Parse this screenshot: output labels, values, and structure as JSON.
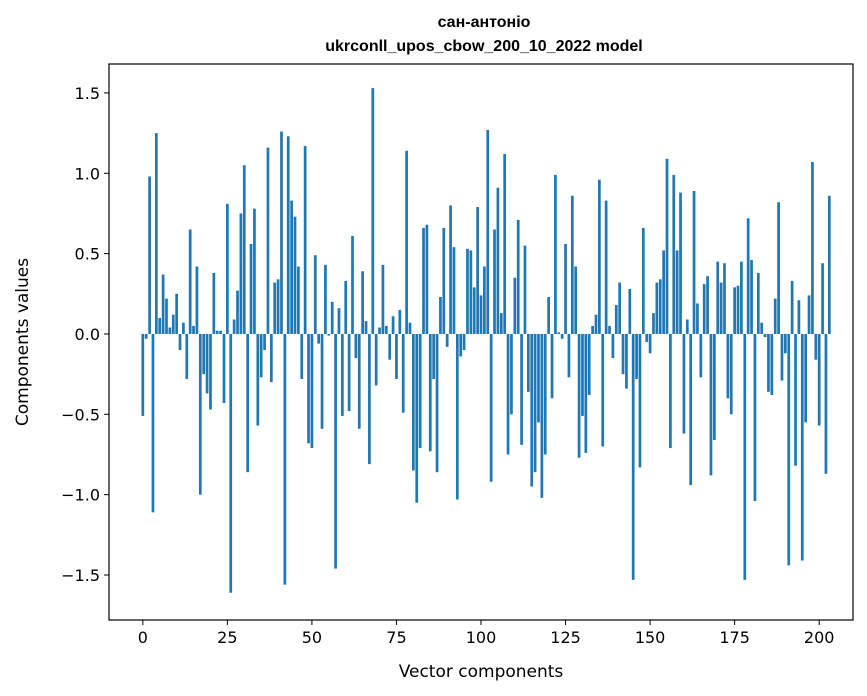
{
  "chart_data": {
    "type": "bar",
    "title": "сан-антоніо",
    "subtitle": "ukrconll_upos_cbow_200_10_2022 model",
    "xlabel": "Vector components",
    "ylabel": "Components values",
    "xlim": [
      -10,
      210
    ],
    "ylim": [
      -1.78,
      1.68
    ],
    "xticks": [
      0,
      25,
      50,
      75,
      100,
      125,
      150,
      175,
      200
    ],
    "yticks": [
      -1.5,
      -1.0,
      -0.5,
      0.0,
      0.5,
      1.0,
      1.5
    ],
    "ytick_labels": [
      "−1.5",
      "−1.0",
      "−0.5",
      "0.0",
      "0.5",
      "1.0",
      "1.5"
    ],
    "grid": false,
    "legend": "none",
    "bar_color": "#1f77b4",
    "values": [
      -0.51,
      -0.03,
      0.98,
      -1.11,
      1.25,
      0.1,
      0.37,
      0.22,
      0.04,
      0.12,
      0.25,
      -0.1,
      0.07,
      -0.28,
      0.65,
      0.05,
      0.42,
      -1.0,
      -0.25,
      -0.37,
      -0.47,
      0.38,
      0.02,
      0.02,
      -0.43,
      0.81,
      -1.61,
      0.09,
      0.27,
      0.75,
      1.05,
      -0.86,
      0.56,
      0.78,
      -0.57,
      -0.27,
      -0.1,
      1.16,
      -0.3,
      0.32,
      0.34,
      1.26,
      -1.56,
      1.23,
      0.83,
      0.73,
      0.42,
      -0.28,
      1.17,
      -0.68,
      -0.71,
      0.49,
      -0.06,
      -0.59,
      0.43,
      -0.01,
      0.2,
      -1.46,
      0.16,
      -0.51,
      0.33,
      -0.48,
      0.61,
      -0.15,
      -0.59,
      0.39,
      0.08,
      -0.81,
      1.53,
      -0.32,
      0.04,
      0.43,
      0.05,
      -0.16,
      0.11,
      -0.28,
      0.15,
      -0.49,
      1.14,
      0.07,
      -0.85,
      -1.05,
      -0.71,
      0.66,
      0.68,
      -0.73,
      -0.28,
      -0.86,
      0.23,
      0.66,
      -0.08,
      0.8,
      0.54,
      -1.03,
      -0.14,
      -0.1,
      0.53,
      0.52,
      0.29,
      0.79,
      0.24,
      0.42,
      1.27,
      -0.92,
      0.65,
      0.91,
      0.13,
      1.12,
      -0.75,
      -0.5,
      0.35,
      0.71,
      -0.69,
      0.55,
      -0.36,
      -0.95,
      -0.86,
      -0.55,
      -1.02,
      -0.75,
      0.23,
      -0.4,
      0.99,
      0.01,
      -0.03,
      0.56,
      -0.27,
      0.86,
      0.42,
      -0.77,
      -0.51,
      -0.74,
      -0.38,
      0.05,
      0.12,
      0.96,
      -0.7,
      0.83,
      0.05,
      -0.15,
      0.18,
      0.32,
      -0.25,
      -0.34,
      0.28,
      -1.53,
      -0.28,
      -0.83,
      0.66,
      -0.05,
      -0.12,
      0.13,
      0.32,
      0.34,
      0.52,
      1.09,
      -0.71,
      0.99,
      0.52,
      0.88,
      -0.62,
      0.09,
      -0.94,
      0.89,
      0.19,
      -0.27,
      0.31,
      0.36,
      -0.88,
      -0.66,
      0.45,
      0.32,
      0.44,
      -0.4,
      -0.5,
      0.29,
      0.3,
      0.45,
      -1.53,
      0.72,
      0.46,
      -1.04,
      0.38,
      0.07,
      -0.02,
      -0.36,
      -0.38,
      0.22,
      0.82,
      -0.29,
      -0.12,
      -1.44,
      0.33,
      -0.82,
      0.21,
      -1.41,
      -0.55,
      0.24,
      1.07,
      -0.16,
      -0.57,
      0.44,
      -0.87,
      0.86
    ]
  }
}
